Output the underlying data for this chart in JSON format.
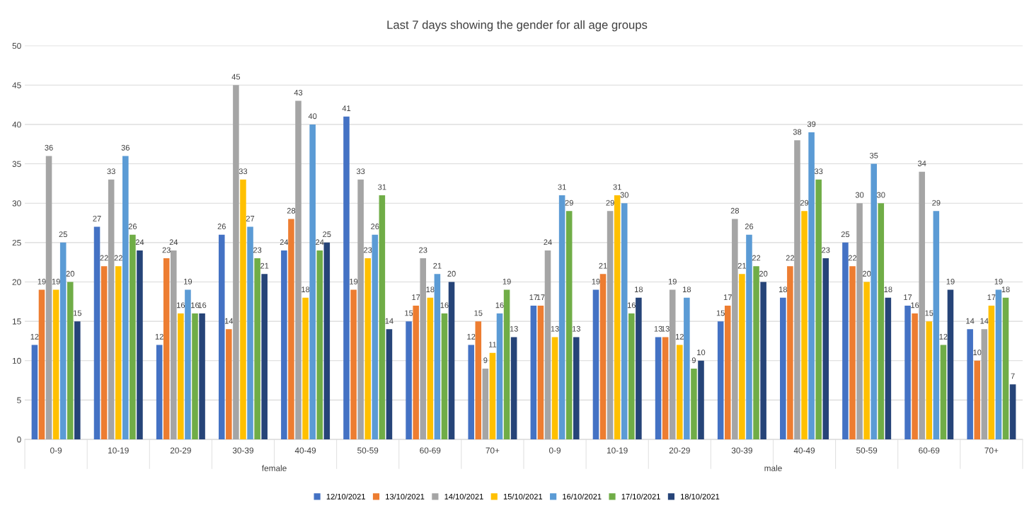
{
  "chart_data": {
    "type": "bar",
    "title": "Last 7 days showing the gender for all age groups",
    "categories": [
      "0-9",
      "10-19",
      "20-29",
      "30-39",
      "40-49",
      "50-59",
      "60-69",
      "70+",
      "0-9",
      "10-19",
      "20-29",
      "30-39",
      "40-49",
      "50-59",
      "60-69",
      "70+"
    ],
    "annotations": [
      "female",
      "male"
    ],
    "series": [
      {
        "name": "12/10/2021",
        "color": "#4472c4",
        "values": [
          12,
          27,
          12,
          26,
          24,
          41,
          15,
          12,
          17,
          19,
          13,
          15,
          18,
          25,
          17,
          14
        ]
      },
      {
        "name": "13/10/2021",
        "color": "#ed7d31",
        "values": [
          19,
          22,
          23,
          14,
          28,
          19,
          17,
          15,
          17,
          21,
          13,
          17,
          22,
          22,
          16,
          10
        ]
      },
      {
        "name": "14/10/2021",
        "color": "#a5a5a5",
        "values": [
          36,
          33,
          24,
          45,
          43,
          33,
          23,
          9,
          24,
          29,
          19,
          28,
          38,
          30,
          34,
          14
        ]
      },
      {
        "name": "15/10/2021",
        "color": "#ffc000",
        "values": [
          19,
          22,
          16,
          33,
          18,
          23,
          18,
          11,
          13,
          31,
          12,
          21,
          29,
          20,
          15,
          17
        ]
      },
      {
        "name": "16/10/2021",
        "color": "#5b9bd5",
        "values": [
          25,
          36,
          19,
          27,
          40,
          26,
          21,
          16,
          31,
          30,
          18,
          26,
          39,
          35,
          29,
          19
        ]
      },
      {
        "name": "17/10/2021",
        "color": "#70ad47",
        "values": [
          20,
          26,
          16,
          23,
          24,
          31,
          16,
          19,
          29,
          16,
          9,
          22,
          33,
          30,
          12,
          18
        ]
      },
      {
        "name": "18/10/2021",
        "color": "#264478",
        "values": [
          15,
          24,
          16,
          21,
          25,
          14,
          20,
          13,
          13,
          18,
          10,
          20,
          23,
          18,
          19,
          7
        ]
      }
    ],
    "ylim": [
      0,
      50
    ],
    "yticks": [
      0,
      5,
      10,
      15,
      20,
      25,
      30,
      35,
      40,
      45,
      50
    ],
    "grid": "y",
    "legend": "bottom",
    "data_labels": true
  }
}
